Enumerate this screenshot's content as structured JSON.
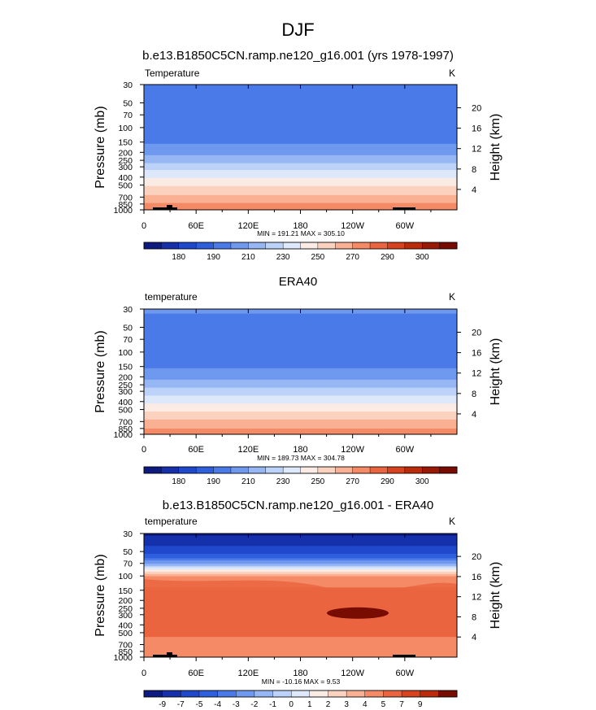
{
  "figure_title": "DJF",
  "chart_data": [
    {
      "type": "heatmap",
      "title": "b.e13.B1850C5CN.ramp.ne120_g16.001 (yrs 1978-1997)",
      "left_label": "Temperature",
      "units": "K",
      "ylabel": "Pressure (mb)",
      "y2label": "Height (km)",
      "x_ticks": [
        "0",
        "60E",
        "120E",
        "180",
        "120W",
        "60W"
      ],
      "y_ticks": [
        "30",
        "50",
        "70",
        "100",
        "150",
        "200",
        "250",
        "300",
        "400",
        "500",
        "700",
        "850",
        "1000"
      ],
      "y2_ticks": [
        "20",
        "16",
        "12",
        "8",
        "4"
      ],
      "ylim_mb": [
        1000,
        30
      ],
      "minmax": "MIN = 191.21  MAX = 305.10",
      "colorbar_labels": [
        "180",
        "190",
        "210",
        "230",
        "250",
        "270",
        "290",
        "300"
      ],
      "colors": [
        "#0d1a80",
        "#1530aa",
        "#1f48cc",
        "#2e5fdd",
        "#4a7ae8",
        "#6f98ef",
        "#97b6f4",
        "#bdd2f8",
        "#dde8fa",
        "#faece4",
        "#fbd2bf",
        "#f9b093",
        "#f48a66",
        "#ea6440",
        "#d8421e",
        "#bb2a0a",
        "#9a1906",
        "#780c02"
      ],
      "levels": [
        180,
        185,
        190,
        200,
        210,
        220,
        230,
        240,
        250,
        260,
        270,
        280,
        290,
        295,
        300,
        305
      ],
      "profile": [
        {
          "p": 30,
          "v": 207
        },
        {
          "p": 50,
          "v": 203
        },
        {
          "p": 70,
          "v": 201
        },
        {
          "p": 100,
          "v": 202
        },
        {
          "p": 150,
          "v": 209
        },
        {
          "p": 200,
          "v": 217
        },
        {
          "p": 250,
          "v": 226
        },
        {
          "p": 300,
          "v": 235
        },
        {
          "p": 400,
          "v": 249
        },
        {
          "p": 500,
          "v": 259
        },
        {
          "p": 700,
          "v": 273
        },
        {
          "p": 850,
          "v": 281
        },
        {
          "p": 1000,
          "v": 287
        }
      ]
    },
    {
      "type": "heatmap",
      "title": "ERA40",
      "left_label": "temperature",
      "units": "K",
      "ylabel": "Pressure (mb)",
      "y2label": "Height (km)",
      "x_ticks": [
        "0",
        "60E",
        "120E",
        "180",
        "120W",
        "60W"
      ],
      "y_ticks": [
        "30",
        "50",
        "70",
        "100",
        "150",
        "200",
        "250",
        "300",
        "400",
        "500",
        "700",
        "850",
        "1000"
      ],
      "y2_ticks": [
        "20",
        "16",
        "12",
        "8",
        "4"
      ],
      "ylim_mb": [
        1000,
        30
      ],
      "minmax": "MIN = 189.73  MAX = 304.78",
      "colorbar_labels": [
        "180",
        "190",
        "210",
        "230",
        "250",
        "270",
        "290",
        "300"
      ],
      "colors": [
        "#0d1a80",
        "#1530aa",
        "#1f48cc",
        "#2e5fdd",
        "#4a7ae8",
        "#6f98ef",
        "#97b6f4",
        "#bdd2f8",
        "#dde8fa",
        "#faece4",
        "#fbd2bf",
        "#f9b093",
        "#f48a66",
        "#ea6440",
        "#d8421e",
        "#bb2a0a",
        "#9a1906",
        "#780c02"
      ],
      "levels": [
        180,
        185,
        190,
        200,
        210,
        220,
        230,
        240,
        250,
        260,
        270,
        280,
        290,
        295,
        300,
        305
      ],
      "profile": [
        {
          "p": 30,
          "v": 211
        },
        {
          "p": 50,
          "v": 207
        },
        {
          "p": 70,
          "v": 203
        },
        {
          "p": 100,
          "v": 202
        },
        {
          "p": 150,
          "v": 209
        },
        {
          "p": 200,
          "v": 217
        },
        {
          "p": 250,
          "v": 226
        },
        {
          "p": 300,
          "v": 235
        },
        {
          "p": 400,
          "v": 248
        },
        {
          "p": 500,
          "v": 258
        },
        {
          "p": 700,
          "v": 272
        },
        {
          "p": 850,
          "v": 280
        },
        {
          "p": 1000,
          "v": 287
        }
      ]
    },
    {
      "type": "heatmap",
      "title": "b.e13.B1850C5CN.ramp.ne120_g16.001 - ERA40",
      "left_label": "temperature",
      "units": "K",
      "ylabel": "Pressure (mb)",
      "y2label": "Height (km)",
      "x_ticks": [
        "0",
        "60E",
        "120E",
        "180",
        "120W",
        "60W"
      ],
      "y_ticks": [
        "30",
        "50",
        "70",
        "100",
        "150",
        "200",
        "250",
        "300",
        "400",
        "500",
        "700",
        "850",
        "1000"
      ],
      "y2_ticks": [
        "20",
        "16",
        "12",
        "8",
        "4"
      ],
      "ylim_mb": [
        1000,
        30
      ],
      "minmax": "MIN = -10.16  MAX =   9.53",
      "colorbar_labels": [
        "-9",
        "-7",
        "-5",
        "-4",
        "-3",
        "-2",
        "-1",
        "0",
        "1",
        "2",
        "3",
        "4",
        "5",
        "7",
        "9"
      ],
      "colors": [
        "#0d1a80",
        "#1530aa",
        "#1f48cc",
        "#2e5fdd",
        "#4a7ae8",
        "#6f98ef",
        "#97b6f4",
        "#bdd2f8",
        "#dde8fa",
        "#faece4",
        "#fbd2bf",
        "#f9b093",
        "#f48a66",
        "#ea6440",
        "#d8421e",
        "#bb2a0a",
        "#780c02"
      ],
      "levels": [
        -9,
        -7,
        -5,
        -4,
        -3,
        -2,
        -1,
        0,
        1,
        2,
        3,
        4,
        5,
        7,
        9
      ],
      "profile": [
        {
          "p": 30,
          "v": -9.5
        },
        {
          "p": 40,
          "v": -7.5
        },
        {
          "p": 50,
          "v": -5.5
        },
        {
          "p": 60,
          "v": -4
        },
        {
          "p": 70,
          "v": -2.2
        },
        {
          "p": 80,
          "v": 0.3
        },
        {
          "p": 90,
          "v": 2.5
        },
        {
          "p": 100,
          "v": 4
        },
        {
          "p": 150,
          "v": 5.2
        },
        {
          "p": 200,
          "v": 6.5
        },
        {
          "p": 300,
          "v": 6.8
        },
        {
          "p": 400,
          "v": 6
        },
        {
          "p": 500,
          "v": 5.3
        },
        {
          "p": 700,
          "v": 4.5
        },
        {
          "p": 850,
          "v": 4
        },
        {
          "p": 1000,
          "v": 4.5
        }
      ]
    }
  ]
}
